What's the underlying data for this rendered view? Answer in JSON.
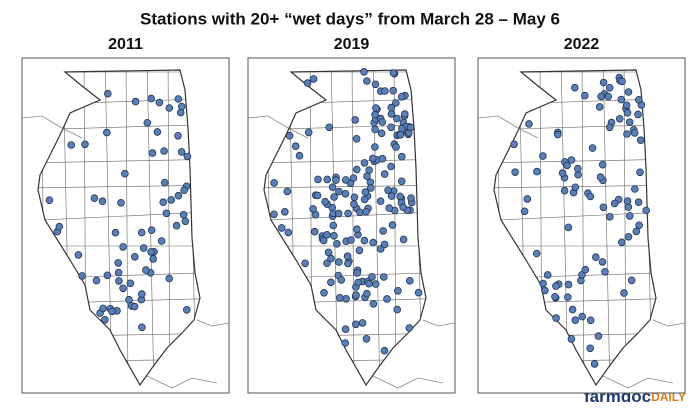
{
  "title": "Stations with 20+ “wet days” from March 28 – May 6",
  "panels": [
    {
      "label": "2011"
    },
    {
      "label": "2019"
    },
    {
      "label": "2022"
    }
  ],
  "logo": {
    "main": "farmdoc",
    "accent": "DAILY"
  }
}
